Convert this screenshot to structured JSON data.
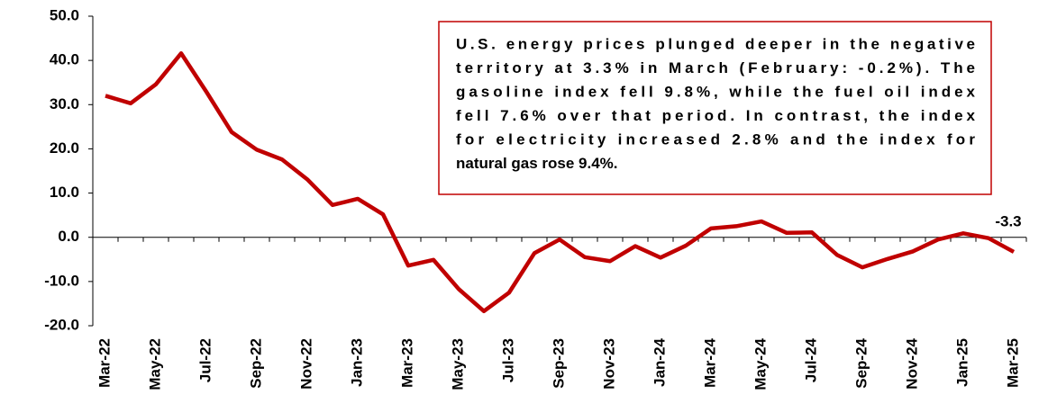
{
  "chart_data": {
    "type": "line",
    "categories": [
      "Mar-22",
      null,
      "May-22",
      null,
      "Jul-22",
      null,
      "Sep-22",
      null,
      "Nov-22",
      null,
      "Jan-23",
      null,
      "Mar-23",
      null,
      "May-23",
      null,
      "Jul-23",
      null,
      "Sep-23",
      null,
      "Nov-23",
      null,
      "Jan-24",
      null,
      "Mar-24",
      null,
      "May-24",
      null,
      "Jul-24",
      null,
      "Sep-24",
      null,
      "Nov-24",
      null,
      "Jan-25",
      null,
      "Mar-25"
    ],
    "series": [
      {
        "name": null,
        "color": "#c00000",
        "values": [
          32.0,
          30.3,
          34.6,
          41.6,
          32.9,
          23.8,
          19.8,
          17.6,
          13.1,
          7.3,
          8.7,
          5.2,
          -6.4,
          -5.1,
          -11.7,
          -16.7,
          -12.5,
          -3.6,
          -0.5,
          -4.5,
          -5.4,
          -2.0,
          -4.6,
          -1.9,
          2.0,
          2.5,
          3.6,
          1.0,
          1.1,
          -4.0,
          -6.8,
          -4.9,
          -3.2,
          -0.5,
          0.9,
          -0.2,
          -3.3
        ],
        "value_labels": [
          null,
          null,
          null,
          null,
          null,
          null,
          null,
          null,
          null,
          null,
          null,
          null,
          null,
          null,
          null,
          null,
          null,
          null,
          null,
          null,
          null,
          null,
          null,
          null,
          null,
          null,
          null,
          null,
          null,
          null,
          null,
          null,
          null,
          null,
          null,
          null,
          "-3.3"
        ]
      }
    ],
    "ylim": [
      -20,
      50
    ],
    "yticks": [
      {
        "value": -20,
        "label": "-20.0"
      },
      {
        "value": -10,
        "label": "-10.0"
      },
      {
        "value": 0,
        "label": "0.0"
      },
      {
        "value": 10,
        "label": "10.0"
      },
      {
        "value": 20,
        "label": "20.0"
      },
      {
        "value": 30,
        "label": "30.0"
      },
      {
        "value": 40,
        "label": "40.0"
      },
      {
        "value": 50,
        "label": "50.0"
      }
    ],
    "annotation": [
      "U.S. energy prices plunged deeper in the negative",
      "territory at 3.3% in  March (February: -0.2%). The",
      "gasoline index fell 9.8%, while the fuel oil index",
      "fell 7.6% over that period. In contrast, the index",
      "for electricity increased 2.8% and the index for",
      "natural gas rose 9.4%."
    ]
  }
}
